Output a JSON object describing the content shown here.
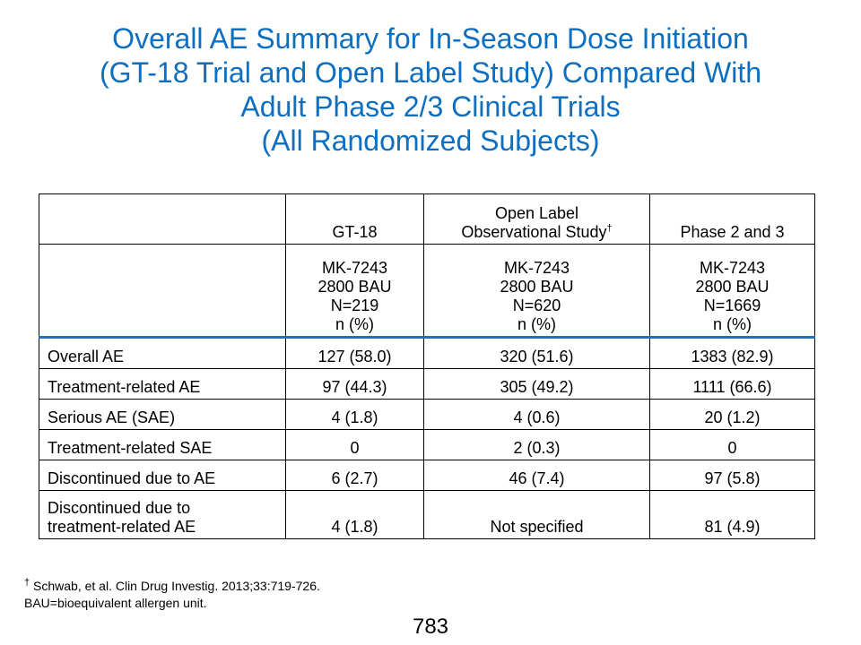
{
  "title": {
    "lines": [
      "Overall AE Summary for In-Season Dose Initiation",
      "(GT-18 Trial and Open Label Study) Compared With",
      "Adult Phase 2/3 Clinical Trials",
      "(All Randomized Subjects)"
    ]
  },
  "table": {
    "headers": [
      {
        "lines": [
          ""
        ]
      },
      {
        "lines": [
          "GT-18"
        ]
      },
      {
        "lines": [
          "Open Label",
          "Observational Study"
        ],
        "sup": "†"
      },
      {
        "lines": [
          "Phase 2 and 3"
        ]
      }
    ],
    "subheaders": [
      {
        "lines": [
          ""
        ]
      },
      {
        "lines": [
          "MK-7243",
          "2800 BAU",
          "N=219",
          "n (%)"
        ]
      },
      {
        "lines": [
          "MK-7243",
          "2800 BAU",
          "N=620",
          "n (%)"
        ]
      },
      {
        "lines": [
          "MK-7243",
          "2800 BAU",
          "N=1669",
          "n (%)"
        ]
      }
    ],
    "rows": [
      {
        "label": "Overall AE",
        "values": [
          "127 (58.0)",
          "320 (51.6)",
          "1383 (82.9)"
        ]
      },
      {
        "label": "Treatment-related AE",
        "values": [
          "97 (44.3)",
          "305 (49.2)",
          "1111 (66.6)"
        ]
      },
      {
        "label": "Serious AE (SAE)",
        "values": [
          "4 (1.8)",
          "4 (0.6)",
          "20 (1.2)"
        ]
      },
      {
        "label": "Treatment-related SAE",
        "values": [
          "0",
          "2 (0.3)",
          "0"
        ]
      },
      {
        "label": "Discontinued due to AE",
        "values": [
          "6 (2.7)",
          "46 (7.4)",
          "97 (5.8)"
        ]
      },
      {
        "label": "Discontinued due to treatment-related AE",
        "label_lines": [
          "Discontinued due to",
          "treatment-related AE"
        ],
        "values": [
          "4 (1.8)",
          "Not specified",
          "81 (4.9)"
        ]
      }
    ]
  },
  "footnotes": {
    "ref_mark": "†",
    "ref_text": " Schwab, et al. Clin Drug Investig. 2013;33:719-726.",
    "bau_text": "BAU=bioequivalent allergen unit."
  },
  "page_number": "783"
}
